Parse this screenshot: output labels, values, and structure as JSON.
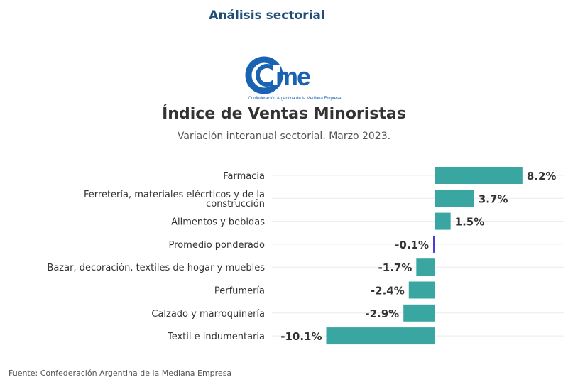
{
  "header": {
    "title": "Análisis sectorial"
  },
  "logo": {
    "text": "came",
    "tagline": "Confederación Argentina de la Mediana Empresa"
  },
  "colors": {
    "bar": "#3aa6a1",
    "highlight": "#4b3bd6",
    "header": "#1f4e79",
    "logo": "#1a63b3"
  },
  "chart_data": {
    "type": "bar",
    "orientation": "horizontal",
    "title": "Índice de Ventas Minoristas",
    "subtitle": "Variación interanual sectorial. Marzo 2023.",
    "categories": [
      [
        "Farmacia"
      ],
      [
        "Ferretería, materiales elécrticos y de la",
        "construcción"
      ],
      [
        "Alimentos y bebidas"
      ],
      [
        "Promedio ponderado"
      ],
      [
        "Bazar, decoración, textiles de hogar y muebles"
      ],
      [
        "Perfumería"
      ],
      [
        "Calzado y marroquinería"
      ],
      [
        "Textil e indumentaria"
      ]
    ],
    "values": [
      8.2,
      3.7,
      1.5,
      -0.1,
      -1.7,
      -2.4,
      -2.9,
      -10.1
    ],
    "data_labels": [
      "8.2%",
      "3.7%",
      "1.5%",
      "-0.1%",
      "-1.7%",
      "-2.4%",
      "-2.9%",
      "-10.1%"
    ],
    "highlighted": "Promedio ponderado",
    "xlim": [
      -11.5,
      12
    ],
    "grid": true
  },
  "source": "Fuente: Confederación Argentina de la Mediana Empresa"
}
